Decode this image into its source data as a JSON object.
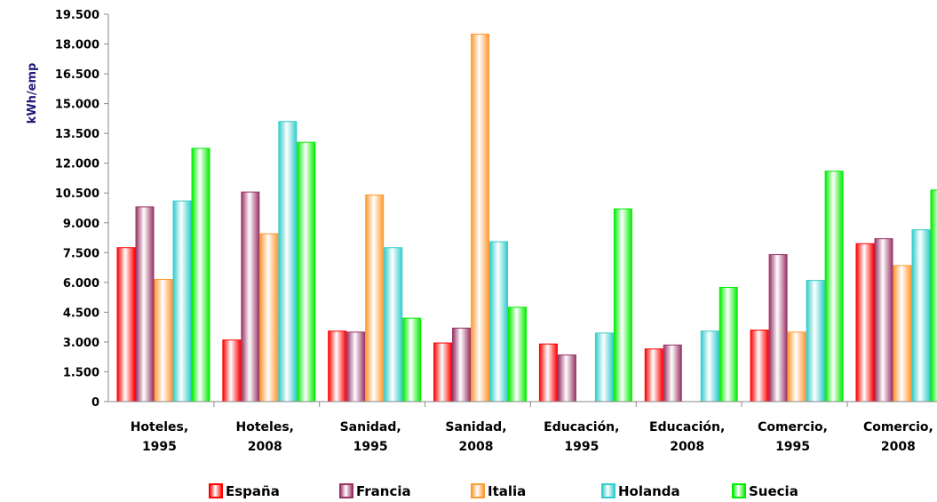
{
  "chart_data": {
    "type": "bar",
    "ylabel": "kWh/emp",
    "ylim": [
      0,
      19500
    ],
    "yticks": [
      "0",
      "1.500",
      "3.000",
      "4.500",
      "6.000",
      "7.500",
      "9.000",
      "10.500",
      "12.000",
      "13.500",
      "15.000",
      "16.500",
      "18.000",
      "19.500"
    ],
    "categories": [
      [
        "Hoteles,",
        "1995"
      ],
      [
        "Hoteles,",
        "2008"
      ],
      [
        "Sanidad,",
        "1995"
      ],
      [
        "Sanidad,",
        "2008"
      ],
      [
        "Educación,",
        "1995"
      ],
      [
        "Educación,",
        "2008"
      ],
      [
        "Comercio,",
        "1995"
      ],
      [
        "Comercio,",
        "2008"
      ]
    ],
    "series": [
      {
        "name": "España",
        "color": "#ff0000",
        "values": [
          7750,
          3100,
          3550,
          2950,
          2900,
          2650,
          3600,
          7950
        ]
      },
      {
        "name": "Francia",
        "color": "#993366",
        "values": [
          9800,
          10550,
          3500,
          3700,
          2350,
          2850,
          7400,
          8200
        ]
      },
      {
        "name": "Italia",
        "color": "#ff9933",
        "values": [
          6150,
          8450,
          10400,
          18500,
          0,
          0,
          3500,
          6850
        ]
      },
      {
        "name": "Holanda",
        "color": "#33cccc",
        "values": [
          10100,
          14100,
          7750,
          8050,
          3450,
          3550,
          6100,
          8650
        ]
      },
      {
        "name": "Suecia",
        "color": "#00ee00",
        "values": [
          12750,
          13050,
          4200,
          4750,
          9700,
          5750,
          11600,
          10650
        ]
      }
    ],
    "grid": false,
    "legend": "bottom"
  }
}
